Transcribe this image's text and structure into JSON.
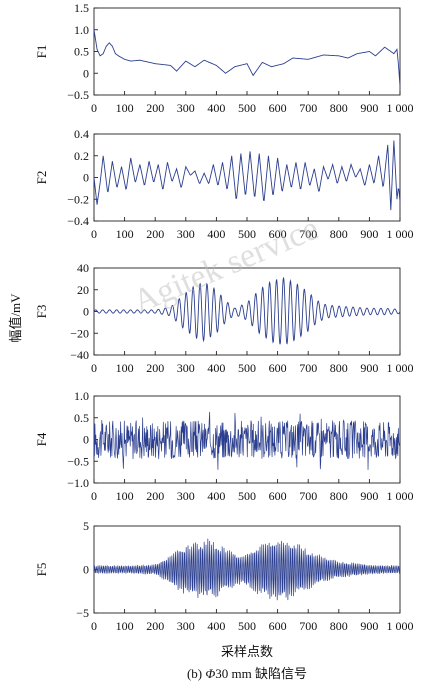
{
  "figure": {
    "ylabel": "幅值/mV",
    "xlabel": "采样点数",
    "caption_prefix": "(b) ",
    "caption_symbol": "Φ",
    "caption_rest": "30 mm 缺陷信号",
    "watermark": "Agitek service"
  },
  "chart_data": [
    {
      "type": "line",
      "title": "F1",
      "xlim": [
        0,
        1000
      ],
      "ylim": [
        -0.5,
        1.5
      ],
      "xticks": [
        0,
        100,
        200,
        300,
        400,
        500,
        600,
        700,
        800,
        900,
        1000
      ],
      "xtick_labels": [
        "0",
        "100",
        "200",
        "300",
        "400",
        "500",
        "600",
        "700",
        "800",
        "900",
        "1 000"
      ],
      "yticks": [
        -0.5,
        0,
        0.5,
        1.0,
        1.5
      ],
      "ytick_labels": [
        "−0.5",
        "0",
        "0.5",
        "1.0",
        "1.5"
      ],
      "color": "#2c3f8f",
      "series": [
        {
          "x": [
            0,
            10,
            20,
            30,
            40,
            50,
            60,
            70,
            80,
            100,
            120,
            150,
            200,
            250,
            270,
            300,
            330,
            360,
            400,
            430,
            460,
            500,
            520,
            550,
            580,
            620,
            650,
            700,
            750,
            800,
            830,
            860,
            900,
            920,
            950,
            980,
            990,
            995,
            1000
          ],
          "values": [
            1.0,
            0.55,
            0.4,
            0.45,
            0.62,
            0.7,
            0.62,
            0.45,
            0.4,
            0.32,
            0.28,
            0.3,
            0.22,
            0.18,
            0.05,
            0.28,
            0.15,
            0.3,
            0.18,
            0.0,
            0.15,
            0.22,
            -0.05,
            0.25,
            0.15,
            0.22,
            0.35,
            0.32,
            0.42,
            0.4,
            0.35,
            0.45,
            0.5,
            0.4,
            0.6,
            0.45,
            0.55,
            0.2,
            -0.3
          ]
        }
      ]
    },
    {
      "type": "line",
      "title": "F2",
      "xlim": [
        0,
        1000
      ],
      "ylim": [
        -0.4,
        0.4
      ],
      "xticks": [
        0,
        100,
        200,
        300,
        400,
        500,
        600,
        700,
        800,
        900,
        1000
      ],
      "xtick_labels": [
        "0",
        "100",
        "200",
        "300",
        "400",
        "500",
        "600",
        "700",
        "800",
        "900",
        "1 000"
      ],
      "yticks": [
        -0.4,
        -0.2,
        0,
        0.2,
        0.4
      ],
      "ytick_labels": [
        "−0.4",
        "−0.2",
        "0",
        "0.2",
        "0.4"
      ],
      "color": "#2c3f8f",
      "series": [
        {
          "x": [
            0,
            10,
            20,
            30,
            45,
            60,
            75,
            90,
            105,
            120,
            135,
            150,
            165,
            180,
            195,
            210,
            225,
            240,
            255,
            270,
            285,
            300,
            315,
            330,
            345,
            360,
            375,
            390,
            405,
            420,
            435,
            450,
            465,
            480,
            495,
            510,
            525,
            540,
            555,
            570,
            585,
            600,
            615,
            630,
            645,
            660,
            675,
            690,
            705,
            720,
            735,
            750,
            765,
            780,
            795,
            810,
            825,
            840,
            855,
            870,
            885,
            900,
            915,
            930,
            945,
            960,
            970,
            980,
            990,
            995,
            1000
          ],
          "values": [
            0.0,
            -0.25,
            -0.05,
            0.2,
            -0.15,
            0.15,
            -0.1,
            0.1,
            -0.12,
            0.18,
            -0.05,
            0.12,
            -0.08,
            0.15,
            -0.05,
            0.12,
            -0.12,
            0.14,
            -0.04,
            0.08,
            -0.1,
            0.1,
            0.02,
            0.06,
            -0.06,
            0.04,
            -0.06,
            0.12,
            -0.08,
            0.14,
            -0.12,
            0.2,
            -0.22,
            0.22,
            -0.18,
            0.24,
            -0.2,
            0.22,
            -0.24,
            0.2,
            -0.18,
            0.18,
            -0.14,
            0.12,
            -0.1,
            0.14,
            -0.12,
            0.14,
            -0.08,
            0.08,
            -0.14,
            0.1,
            -0.02,
            0.12,
            -0.06,
            0.1,
            -0.04,
            0.12,
            0.0,
            0.08,
            -0.08,
            0.12,
            -0.06,
            0.2,
            -0.1,
            0.3,
            -0.3,
            0.34,
            -0.2,
            -0.08,
            -0.22
          ]
        }
      ]
    },
    {
      "type": "line",
      "title": "F3",
      "xlim": [
        0,
        1000
      ],
      "ylim": [
        -40,
        40
      ],
      "xticks": [
        0,
        100,
        200,
        300,
        400,
        500,
        600,
        700,
        800,
        900,
        1000
      ],
      "xtick_labels": [
        "0",
        "100",
        "200",
        "300",
        "400",
        "500",
        "600",
        "700",
        "800",
        "900",
        "1 000"
      ],
      "yticks": [
        -40,
        -20,
        0,
        20,
        40
      ],
      "ytick_labels": [
        "−40",
        "−20",
        "0",
        "20",
        "40"
      ],
      "color": "#2c3f8f",
      "envelope": {
        "x": [
          0,
          100,
          200,
          250,
          290,
          330,
          360,
          400,
          430,
          460,
          500,
          540,
          580,
          620,
          660,
          700,
          730,
          760,
          800,
          850,
          900,
          950,
          1000
        ],
        "values": [
          1.5,
          1.5,
          1.5,
          4,
          15,
          24,
          27,
          20,
          10,
          3,
          8,
          20,
          28,
          31,
          26,
          18,
          10,
          6,
          5,
          4,
          3,
          3,
          2
        ]
      },
      "cycles": 44
    },
    {
      "type": "line",
      "title": "F4",
      "xlim": [
        0,
        1000
      ],
      "ylim": [
        -1.0,
        1.0
      ],
      "xticks": [
        0,
        100,
        200,
        300,
        400,
        500,
        600,
        700,
        800,
        900,
        1000
      ],
      "xtick_labels": [
        "0",
        "100",
        "200",
        "300",
        "400",
        "500",
        "600",
        "700",
        "800",
        "900",
        "1 000"
      ],
      "yticks": [
        -1.0,
        -0.5,
        0,
        0.5,
        1.0
      ],
      "ytick_labels": [
        "−1.0",
        "−0.5",
        "0",
        "0.5",
        "1.0"
      ],
      "color": "#2c3f8f",
      "envelope": {
        "x": [
          0,
          1000
        ],
        "values": [
          0.45,
          0.45
        ]
      },
      "noise": true
    },
    {
      "type": "line",
      "title": "F5",
      "xlim": [
        0,
        1000
      ],
      "ylim": [
        -5,
        5
      ],
      "xticks": [
        0,
        100,
        200,
        300,
        400,
        500,
        600,
        700,
        800,
        900,
        1000
      ],
      "xtick_labels": [
        "0",
        "100",
        "200",
        "300",
        "400",
        "500",
        "600",
        "700",
        "800",
        "900",
        "1 000"
      ],
      "yticks": [
        -5,
        0,
        5
      ],
      "ytick_labels": [
        "−5",
        "0",
        "5"
      ],
      "color": "#2c3f8f",
      "envelope": {
        "x": [
          0,
          100,
          200,
          240,
          280,
          330,
          370,
          400,
          440,
          480,
          520,
          570,
          610,
          640,
          680,
          720,
          760,
          800,
          850,
          900,
          950,
          1000
        ],
        "values": [
          0.5,
          0.5,
          0.6,
          1.5,
          2.6,
          3.4,
          3.6,
          3.2,
          2.4,
          1.8,
          2.6,
          3.6,
          3.9,
          3.6,
          2.8,
          2.0,
          1.4,
          1.0,
          0.8,
          0.6,
          0.5,
          0.5
        ]
      },
      "dense": true
    }
  ]
}
